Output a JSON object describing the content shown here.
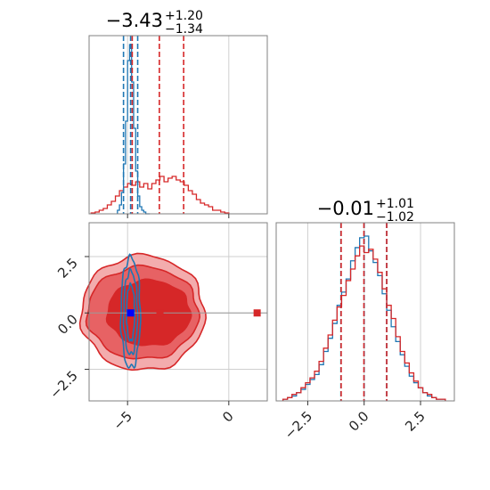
{
  "chart_data": {
    "type": "corner",
    "colors": {
      "blue": "#1f77b4",
      "red": "#d62728",
      "grid": "#cfcfcf",
      "frame": "#808080"
    },
    "titles": {
      "param1": {
        "median": "−3.43",
        "plus": "+1.20",
        "minus": "−1.34"
      },
      "param2": {
        "median": "−0.01",
        "plus": "+1.01",
        "minus": "−1.02"
      }
    },
    "axes": {
      "param1": {
        "range": [
          -6.9,
          1.9
        ],
        "ticks": [
          -5,
          0
        ],
        "tick_labels": [
          "−5",
          "0"
        ]
      },
      "param2": {
        "range": [
          -3.9,
          4.0
        ],
        "ticks": [
          -2.5,
          0.0,
          2.5
        ],
        "tick_labels": [
          "−2.5",
          "0.0",
          "2.5"
        ],
        "y_tick_labels": [
          "2.5",
          "0.0",
          "−2.5"
        ]
      },
      "grid": true
    },
    "hist_param1": {
      "blue": {
        "bin_edges": [
          -5.5,
          -5.4,
          -5.3,
          -5.2,
          -5.1,
          -5.0,
          -4.9,
          -4.8,
          -4.7,
          -4.6,
          -4.5,
          -4.4,
          -4.3,
          -4.2,
          -4.1,
          -4.0,
          -3.9
        ],
        "values": [
          0.02,
          0.05,
          0.12,
          0.28,
          0.52,
          0.86,
          0.95,
          0.74,
          0.48,
          0.24,
          0.1,
          0.04,
          0.02,
          0.01,
          0.0,
          0.0
        ],
        "quantile_lines": [
          -5.2,
          -4.85,
          -4.5
        ]
      },
      "red": {
        "bin_edges": [
          -6.8,
          -6.6,
          -6.4,
          -6.2,
          -6.0,
          -5.8,
          -5.6,
          -5.4,
          -5.2,
          -5.0,
          -4.8,
          -4.6,
          -4.4,
          -4.2,
          -4.0,
          -3.8,
          -3.6,
          -3.4,
          -3.2,
          -3.0,
          -2.8,
          -2.6,
          -2.4,
          -2.2,
          -2.0,
          -1.8,
          -1.6,
          -1.4,
          -1.2,
          -1.0,
          -0.8,
          -0.6,
          -0.4,
          -0.2,
          0.0
        ],
        "values": [
          0.005,
          0.01,
          0.02,
          0.03,
          0.05,
          0.07,
          0.1,
          0.13,
          0.15,
          0.17,
          0.16,
          0.18,
          0.15,
          0.17,
          0.14,
          0.17,
          0.19,
          0.21,
          0.18,
          0.2,
          0.21,
          0.19,
          0.18,
          0.16,
          0.13,
          0.11,
          0.08,
          0.06,
          0.05,
          0.04,
          0.02,
          0.02,
          0.01,
          0.005
        ],
        "quantile_lines": [
          -4.77,
          -3.43,
          -2.23
        ]
      }
    },
    "hist_param2": {
      "blue": {
        "bin_edges": [
          -3.6,
          -3.4,
          -3.2,
          -3.0,
          -2.8,
          -2.6,
          -2.4,
          -2.2,
          -2.0,
          -1.8,
          -1.6,
          -1.4,
          -1.2,
          -1.0,
          -0.8,
          -0.6,
          -0.4,
          -0.2,
          0.0,
          0.2,
          0.4,
          0.6,
          0.8,
          1.0,
          1.2,
          1.4,
          1.6,
          1.8,
          2.0,
          2.2,
          2.4,
          2.6,
          2.8,
          3.0,
          3.2,
          3.4,
          3.6
        ],
        "values": [
          0.01,
          0.02,
          0.03,
          0.05,
          0.07,
          0.1,
          0.13,
          0.16,
          0.22,
          0.3,
          0.38,
          0.47,
          0.58,
          0.66,
          0.74,
          0.85,
          0.93,
          0.99,
          1.0,
          0.91,
          0.84,
          0.76,
          0.65,
          0.55,
          0.45,
          0.36,
          0.28,
          0.21,
          0.15,
          0.11,
          0.08,
          0.05,
          0.03,
          0.02,
          0.01,
          0.01
        ],
        "quantile_lines": [
          -1.03,
          0.0,
          1.0
        ]
      },
      "red": {
        "bin_edges": [
          -3.6,
          -3.4,
          -3.2,
          -3.0,
          -2.8,
          -2.6,
          -2.4,
          -2.2,
          -2.0,
          -1.8,
          -1.6,
          -1.4,
          -1.2,
          -1.0,
          -0.8,
          -0.6,
          -0.4,
          -0.2,
          0.0,
          0.2,
          0.4,
          0.6,
          0.8,
          1.0,
          1.2,
          1.4,
          1.6,
          1.8,
          2.0,
          2.2,
          2.4,
          2.6,
          2.8,
          3.0,
          3.2,
          3.4,
          3.6
        ],
        "values": [
          0.01,
          0.02,
          0.04,
          0.05,
          0.08,
          0.11,
          0.14,
          0.18,
          0.24,
          0.32,
          0.4,
          0.49,
          0.57,
          0.64,
          0.73,
          0.8,
          0.88,
          0.94,
          0.9,
          0.92,
          0.86,
          0.78,
          0.68,
          0.58,
          0.5,
          0.39,
          0.3,
          0.23,
          0.17,
          0.12,
          0.08,
          0.05,
          0.04,
          0.02,
          0.01,
          0.01
        ],
        "quantile_lines": [
          -1.02,
          -0.01,
          1.0
        ]
      }
    },
    "scatter_2d": {
      "blue_markers": [
        {
          "x": -4.85,
          "y": 0.0
        }
      ],
      "red_markers": [
        {
          "x": -4.85,
          "y": 0.0
        },
        {
          "x": -3.4,
          "y": 0.0
        },
        {
          "x": 1.4,
          "y": 0.0
        }
      ],
      "red_contours": [
        {
          "level": "outer",
          "cx": -4.25,
          "cy": 0.0,
          "rx": 3.05,
          "ry": 2.55
        },
        {
          "level": "middle",
          "cx": -4.25,
          "cy": 0.0,
          "rx": 2.75,
          "ry": 2.05
        },
        {
          "level": "inner",
          "cx": -3.95,
          "cy": 0.0,
          "rx": 2.05,
          "ry": 1.45
        }
      ],
      "blue_contours": [
        {
          "level": "outer",
          "cx": -4.85,
          "cy": 0.0,
          "rx": 0.48,
          "ry": 2.45
        },
        {
          "level": "middle",
          "cx": -4.85,
          "cy": 0.0,
          "rx": 0.34,
          "ry": 1.85
        },
        {
          "level": "inner",
          "cx": -4.85,
          "cy": 0.0,
          "rx": 0.2,
          "ry": 1.25
        }
      ]
    }
  }
}
